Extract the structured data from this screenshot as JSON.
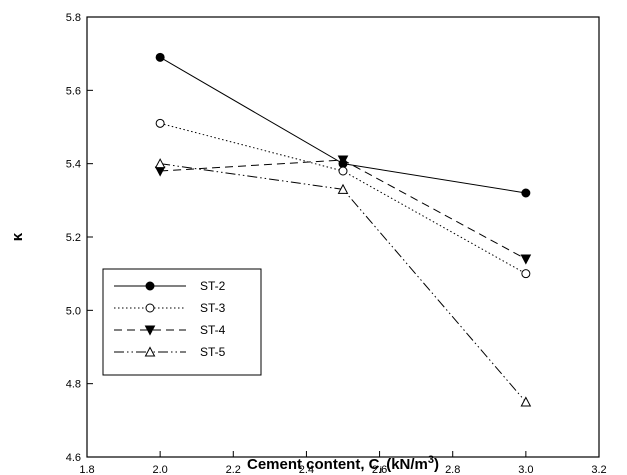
{
  "chart_data": {
    "type": "line",
    "xlabel": "Cement content, C",
    "xlabel_subscript": "i",
    "xlabel_units_open": " (kN/m",
    "xlabel_units_sup": "3",
    "xlabel_units_close": ")",
    "ylabel": "κ",
    "xlim": [
      1.8,
      3.2
    ],
    "ylim": [
      4.6,
      5.8
    ],
    "xticks": [
      "1.8",
      "2.0",
      "2.2",
      "2.4",
      "2.6",
      "2.8",
      "3.0",
      "3.2"
    ],
    "yticks": [
      "4.6",
      "4.8",
      "5.0",
      "5.2",
      "5.4",
      "5.6",
      "5.8"
    ],
    "grid": false,
    "legend_position": "bottom-left",
    "series": [
      {
        "name": "ST-2",
        "marker": "filled-circle",
        "line": "solid",
        "x": [
          2.0,
          2.5,
          3.0
        ],
        "y": [
          5.69,
          5.4,
          5.32
        ]
      },
      {
        "name": "ST-3",
        "marker": "open-circle",
        "line": "dotted",
        "x": [
          2.0,
          2.5,
          3.0
        ],
        "y": [
          5.51,
          5.38,
          5.1
        ]
      },
      {
        "name": "ST-4",
        "marker": "filled-triangle-down",
        "line": "dashed",
        "x": [
          2.0,
          2.5,
          3.0
        ],
        "y": [
          5.38,
          5.41,
          5.14
        ]
      },
      {
        "name": "ST-5",
        "marker": "open-triangle-up",
        "line": "dash-dot-dot",
        "x": [
          2.0,
          2.5,
          3.0
        ],
        "y": [
          5.4,
          5.33,
          4.75
        ]
      }
    ]
  }
}
